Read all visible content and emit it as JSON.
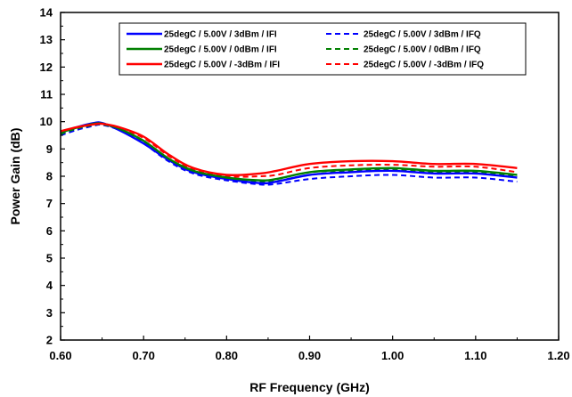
{
  "chart_data": {
    "type": "line",
    "xlabel": "RF Frequency (GHz)",
    "ylabel": "Power Gain (dB)",
    "xlim": [
      0.6,
      1.2
    ],
    "ylim": [
      2,
      14
    ],
    "x_ticks": [
      "0.60",
      "0.70",
      "0.80",
      "0.90",
      "1.00",
      "1.10",
      "1.20"
    ],
    "y_ticks": [
      "2",
      "3",
      "4",
      "5",
      "6",
      "7",
      "8",
      "9",
      "10",
      "11",
      "12",
      "13",
      "14"
    ],
    "grid": false,
    "legend_position": "top",
    "series": [
      {
        "name": "25degC /  5.00V /  3dBm /  IFI",
        "color": "#0000ff",
        "dash": "solid",
        "x": [
          0.6,
          0.62,
          0.64,
          0.65,
          0.67,
          0.7,
          0.73,
          0.76,
          0.8,
          0.84,
          0.86,
          0.9,
          0.95,
          1.0,
          1.05,
          1.1,
          1.15
        ],
        "y": [
          9.6,
          9.8,
          9.95,
          9.95,
          9.7,
          9.2,
          8.6,
          8.15,
          7.9,
          7.75,
          7.8,
          8.05,
          8.15,
          8.2,
          8.1,
          8.1,
          7.95
        ]
      },
      {
        "name": "25degC /  5.00V /  0dBm /  IFI",
        "color": "#008000",
        "dash": "solid",
        "x": [
          0.6,
          0.62,
          0.64,
          0.65,
          0.67,
          0.7,
          0.73,
          0.76,
          0.8,
          0.84,
          0.86,
          0.9,
          0.95,
          1.0,
          1.05,
          1.1,
          1.15
        ],
        "y": [
          9.6,
          9.78,
          9.92,
          9.93,
          9.75,
          9.3,
          8.65,
          8.2,
          7.95,
          7.85,
          7.9,
          8.15,
          8.25,
          8.3,
          8.2,
          8.2,
          8.05
        ]
      },
      {
        "name": "25degC /  5.00V /  -3dBm /  IFI",
        "color": "#ff0000",
        "dash": "solid",
        "x": [
          0.6,
          0.62,
          0.64,
          0.65,
          0.67,
          0.7,
          0.73,
          0.76,
          0.8,
          0.84,
          0.86,
          0.9,
          0.95,
          1.0,
          1.05,
          1.1,
          1.15
        ],
        "y": [
          9.65,
          9.8,
          9.9,
          9.92,
          9.8,
          9.45,
          8.8,
          8.3,
          8.05,
          8.1,
          8.2,
          8.45,
          8.55,
          8.55,
          8.45,
          8.45,
          8.3
        ]
      },
      {
        "name": "25degC /  5.00V /  3dBm /  IFQ",
        "color": "#0000ff",
        "dash": "dashed",
        "x": [
          0.6,
          0.62,
          0.64,
          0.65,
          0.67,
          0.7,
          0.73,
          0.76,
          0.8,
          0.84,
          0.86,
          0.9,
          0.95,
          1.0,
          1.05,
          1.1,
          1.15
        ],
        "y": [
          9.5,
          9.7,
          9.85,
          9.88,
          9.7,
          9.2,
          8.55,
          8.1,
          7.85,
          7.7,
          7.72,
          7.9,
          8.0,
          8.05,
          7.95,
          7.95,
          7.8
        ]
      },
      {
        "name": "25degC /  5.00V /  0dBm /  IFQ",
        "color": "#008000",
        "dash": "dashed",
        "x": [
          0.6,
          0.62,
          0.64,
          0.65,
          0.67,
          0.7,
          0.73,
          0.76,
          0.8,
          0.84,
          0.86,
          0.9,
          0.95,
          1.0,
          1.05,
          1.1,
          1.15
        ],
        "y": [
          9.55,
          9.75,
          9.88,
          9.9,
          9.72,
          9.25,
          8.6,
          8.15,
          7.9,
          7.8,
          7.82,
          8.05,
          8.2,
          8.25,
          8.15,
          8.15,
          8.0
        ]
      },
      {
        "name": "25degC /  5.00V /  -3dBm /  IFQ",
        "color": "#ff0000",
        "dash": "dashed",
        "x": [
          0.6,
          0.62,
          0.64,
          0.65,
          0.67,
          0.7,
          0.73,
          0.76,
          0.8,
          0.84,
          0.86,
          0.9,
          0.95,
          1.0,
          1.05,
          1.1,
          1.15
        ],
        "y": [
          9.6,
          9.78,
          9.9,
          9.92,
          9.78,
          9.4,
          8.75,
          8.25,
          8.0,
          8.0,
          8.05,
          8.3,
          8.4,
          8.42,
          8.35,
          8.35,
          8.15
        ]
      }
    ]
  }
}
